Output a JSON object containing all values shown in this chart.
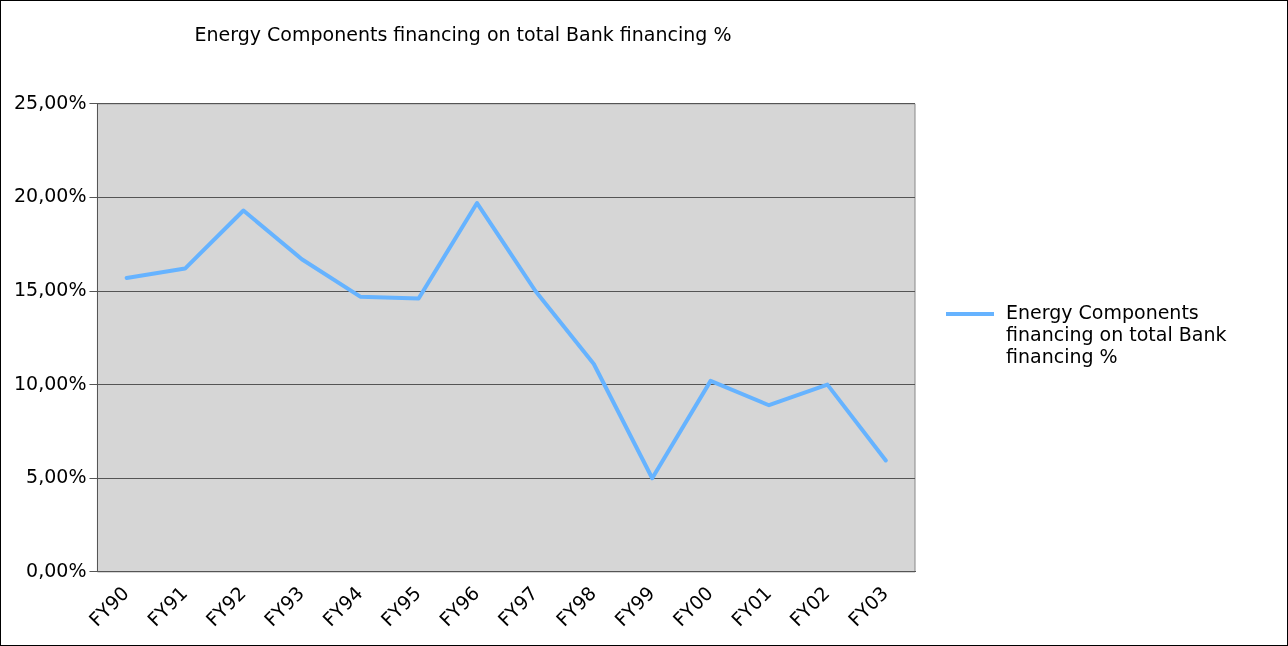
{
  "chart_data": {
    "type": "line",
    "title": "Energy Components financing on total Bank financing %",
    "categories": [
      "FY90",
      "FY91",
      "FY92",
      "FY93",
      "FY94",
      "FY95",
      "FY96",
      "FY97",
      "FY98",
      "FY99",
      "FY00",
      "FY01",
      "FY02",
      "FY03"
    ],
    "series": [
      {
        "name": "Energy Components financing on total Bank financing %",
        "color": "#66b3ff",
        "values": [
          15.7,
          16.2,
          19.3,
          16.7,
          14.7,
          14.6,
          19.7,
          15.0,
          11.1,
          5.0,
          10.2,
          8.9,
          10.0,
          5.95
        ]
      }
    ],
    "ylim": [
      0,
      25
    ],
    "yticks": [
      {
        "value": 0,
        "label": "0,00%"
      },
      {
        "value": 5,
        "label": "5,00%"
      },
      {
        "value": 10,
        "label": "10,00%"
      },
      {
        "value": 15,
        "label": "15,00%"
      },
      {
        "value": 20,
        "label": "20,00%"
      },
      {
        "value": 25,
        "label": "25,00%"
      }
    ],
    "grid": "y",
    "legend": "right",
    "marker": "none",
    "line_style": "solid"
  }
}
